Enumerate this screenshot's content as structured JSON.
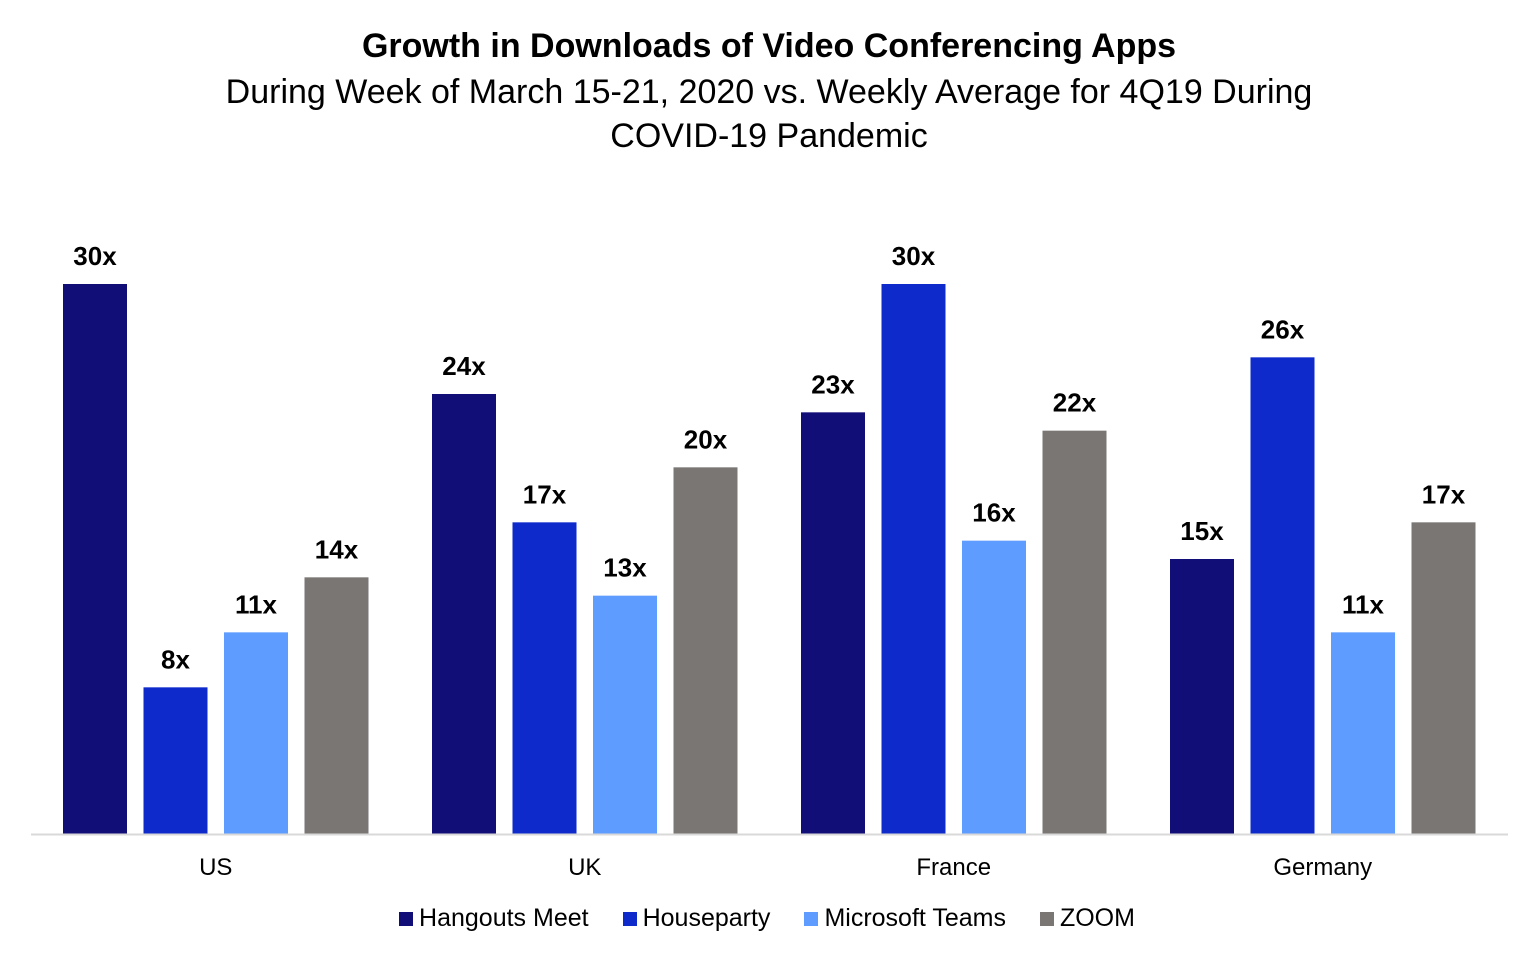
{
  "chart_data": {
    "type": "bar",
    "title": "Growth in Downloads of Video Conferencing Apps",
    "subtitle_lines": [
      "During Week of March 15-21, 2020 vs. Weekly Average for 4Q19 During",
      "COVID-19 Pandemic"
    ],
    "categories": [
      "US",
      "UK",
      "France",
      "Germany"
    ],
    "series": [
      {
        "name": "Hangouts Meet",
        "color": "#120E78",
        "values": [
          30,
          24,
          23,
          15
        ]
      },
      {
        "name": "Houseparty",
        "color": "#0E2ACB",
        "values": [
          8,
          17,
          30,
          26
        ]
      },
      {
        "name": "Microsoft Teams",
        "color": "#5E9DFF",
        "values": [
          11,
          13,
          16,
          11
        ]
      },
      {
        "name": "ZOOM",
        "color": "#7A7674",
        "values": [
          14,
          20,
          22,
          17
        ]
      }
    ],
    "value_suffix": "x",
    "ylim": [
      0,
      30
    ],
    "grid": false,
    "legend_position": "bottom-center",
    "axis_color": "#D9D9D9"
  }
}
